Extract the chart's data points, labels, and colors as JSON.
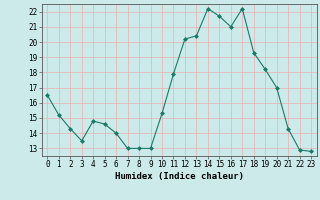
{
  "x": [
    0,
    1,
    2,
    3,
    4,
    5,
    6,
    7,
    8,
    9,
    10,
    11,
    12,
    13,
    14,
    15,
    16,
    17,
    18,
    19,
    20,
    21,
    22,
    23
  ],
  "y": [
    16.5,
    15.2,
    14.3,
    13.5,
    14.8,
    14.6,
    14.0,
    13.0,
    13.0,
    13.0,
    15.3,
    17.9,
    20.2,
    20.4,
    22.2,
    21.7,
    21.0,
    22.2,
    19.3,
    18.2,
    17.0,
    14.3,
    12.9,
    12.8
  ],
  "line_color": "#1a7a6a",
  "marker": "D",
  "marker_size": 2.0,
  "bg_color": "#cceaea",
  "grid_color": "#e8b0b0",
  "xlabel": "Humidex (Indice chaleur)",
  "ylim": [
    12.5,
    22.5
  ],
  "xlim": [
    -0.5,
    23.5
  ],
  "yticks": [
    13,
    14,
    15,
    16,
    17,
    18,
    19,
    20,
    21,
    22
  ],
  "xticks": [
    0,
    1,
    2,
    3,
    4,
    5,
    6,
    7,
    8,
    9,
    10,
    11,
    12,
    13,
    14,
    15,
    16,
    17,
    18,
    19,
    20,
    21,
    22,
    23
  ],
  "tick_fontsize": 5.5,
  "xlabel_fontsize": 6.5
}
